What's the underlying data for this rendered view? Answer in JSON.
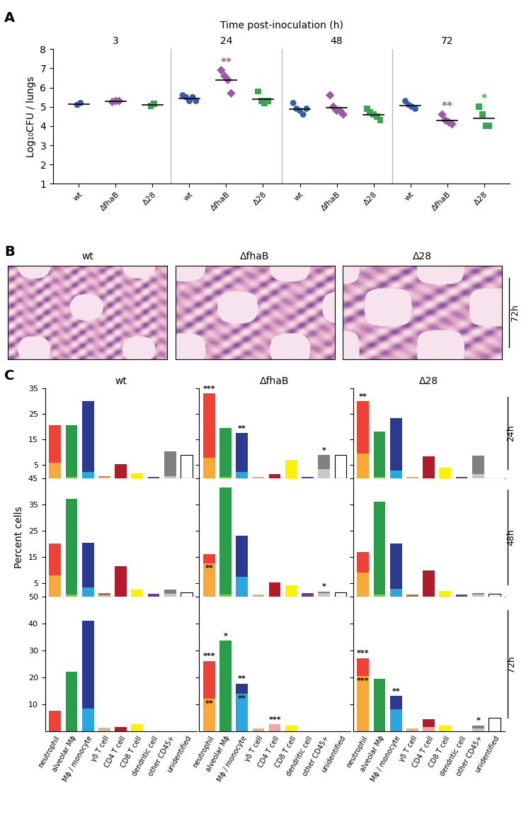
{
  "panel_labels": [
    "A",
    "B",
    "C"
  ],
  "histology": {
    "titles": [
      "wt",
      "ΔfhaB",
      "Δ28"
    ],
    "time": "72h"
  },
  "chart_data": [
    {
      "type": "scatter",
      "title": "Time post-inoculation (h)",
      "ylabel": "Log₁₀CFU / lungs",
      "groups": [
        "3",
        "24",
        "48",
        "72"
      ],
      "categories": [
        "wt",
        "ΔfhaB",
        "Δ28"
      ],
      "series": [
        {
          "name": "wt",
          "color": "#3b5ba9",
          "marker": "circle",
          "values": [
            [
              5.1,
              5.2
            ],
            [
              5.6,
              5.5,
              5.3,
              5.5,
              5.3
            ],
            [
              5.2,
              4.9,
              4.8,
              4.6,
              4.9
            ],
            [
              5.3,
              5.1,
              5.0,
              4.9
            ]
          ]
        },
        {
          "name": "ΔfhaB",
          "color": "#9b59a6",
          "marker": "diamond",
          "values": [
            [
              5.25,
              5.3,
              5.3
            ],
            [
              6.9,
              6.6,
              6.4,
              5.7
            ],
            [
              5.6,
              5.0,
              4.8,
              4.8,
              4.6
            ],
            [
              4.6,
              4.3,
              4.2,
              4.1
            ]
          ]
        },
        {
          "name": "Δ28",
          "color": "#3aa552",
          "marker": "square",
          "values": [
            [
              5.05,
              5.15
            ],
            [
              5.8,
              5.3,
              5.2,
              5.3
            ],
            [
              4.9,
              4.7,
              4.6,
              4.5,
              4.3
            ],
            [
              5.0,
              4.6,
              4.0,
              4.0
            ]
          ]
        }
      ],
      "ylim": [
        1,
        8
      ],
      "yticks": [
        1,
        2,
        3,
        4,
        5,
        6,
        7,
        8
      ],
      "annotations": [
        {
          "group": "24",
          "category": "ΔfhaB",
          "text": "**"
        },
        {
          "group": "72",
          "category": "ΔfhaB",
          "text": "**"
        },
        {
          "group": "72",
          "category": "Δ28",
          "text": "*"
        }
      ]
    },
    {
      "type": "bar",
      "stacked": true,
      "title": "wt",
      "tick_labels": "y",
      "categories": [
        "neutrophil",
        "alveolar Mϕ",
        "Mϕ / monocyte",
        "γδ T cell",
        "CD4 T cell",
        "CD8 T cell",
        "dendritic cell",
        "other CD45+",
        "unidentified"
      ],
      "series": [
        {
          "colors": [
            "#f9a93a",
            "#8dc63f",
            "#2aa7df",
            "#d9b78a",
            "#f4a6a6",
            "#f7e24a",
            "#9c7bb5",
            "#c8c8c8",
            "#ffffff"
          ],
          "values": [
            5.8,
            0.5,
            2.3,
            0.3,
            0,
            0,
            0,
            0.8,
            0
          ]
        },
        {
          "colors": [
            "#ef4136",
            "#2a9d4a",
            "#2b3990",
            "#a6763c",
            "#b31b2b",
            "#fff200",
            "#6a3d9a",
            "#808080",
            "#ffffff"
          ],
          "values": [
            14.7,
            20,
            27.7,
            0.5,
            5.5,
            1.7,
            0.5,
            9.5,
            9
          ]
        }
      ],
      "ylim": [
        0,
        35
      ],
      "yticks": [
        5,
        15,
        25,
        35
      ],
      "annotations": []
    },
    {
      "type": "bar",
      "stacked": true,
      "title": "ΔfhaB",
      "tick_labels": false,
      "categories": [
        "neutrophil",
        "alveolar Mϕ",
        "Mϕ / monocyte",
        "γδ T cell",
        "CD4 T cell",
        "CD8 T cell",
        "dendritic cell",
        "other CD45+",
        "unidentified"
      ],
      "series": [
        {
          "colors": [
            "#f9a93a",
            "#8dc63f",
            "#2aa7df",
            "#d9b78a",
            "#f4a6a6",
            "#f7e24a",
            "#9c7bb5",
            "#c8c8c8",
            "#ffffff"
          ],
          "values": [
            8,
            0.5,
            2.3,
            0.3,
            0,
            0,
            0,
            3.5,
            0
          ]
        },
        {
          "colors": [
            "#ef4136",
            "#2a9d4a",
            "#2b3990",
            "#a6763c",
            "#b31b2b",
            "#fff200",
            "#6a3d9a",
            "#808080",
            "#ffffff"
          ],
          "values": [
            25,
            19,
            15.2,
            0,
            1.5,
            7,
            0.5,
            5.5,
            9
          ]
        }
      ],
      "ylim": [
        0,
        35
      ],
      "yticks": [
        5,
        15,
        25,
        35
      ],
      "annotations": [
        {
          "category": "neutrophil",
          "series": 1,
          "text": "***"
        },
        {
          "category": "Mϕ / monocyte",
          "series": 1,
          "text": "**"
        },
        {
          "category": "other CD45+",
          "series": 0,
          "text": "*"
        }
      ]
    },
    {
      "type": "bar",
      "stacked": true,
      "title": "Δ28",
      "time": "24h",
      "tick_labels": false,
      "categories": [
        "neutrophil",
        "alveolar Mϕ",
        "Mϕ / monocyte",
        "γδ T cell",
        "CD4 T cell",
        "CD8 T cell",
        "dendritic cell",
        "other CD45+",
        "unidentified"
      ],
      "series": [
        {
          "colors": [
            "#f9a93a",
            "#8dc63f",
            "#2aa7df",
            "#d9b78a",
            "#f4a6a6",
            "#f7e24a",
            "#9c7bb5",
            "#c8c8c8",
            "#ffffff"
          ],
          "values": [
            9.5,
            0.5,
            3,
            0.4,
            0,
            0,
            0,
            1.5,
            0
          ]
        },
        {
          "colors": [
            "#ef4136",
            "#2a9d4a",
            "#2b3990",
            "#a6763c",
            "#b31b2b",
            "#fff200",
            "#6a3d9a",
            "#808080",
            "#ffffff"
          ],
          "values": [
            20.5,
            17.5,
            20.3,
            0,
            8.3,
            4,
            0.5,
            7.3,
            0
          ]
        }
      ],
      "ylim": [
        0,
        35
      ],
      "yticks": [
        5,
        15,
        25,
        35
      ],
      "annotations": [
        {
          "category": "neutrophil",
          "series": 1,
          "text": "**"
        }
      ]
    },
    {
      "type": "bar",
      "stacked": true,
      "tick_labels": "y",
      "ylabel": "Percent cells",
      "categories": [
        "neutrophil",
        "alveolar Mϕ",
        "Mϕ / monocyte",
        "γδ T cell",
        "CD4 T cell",
        "CD8 T cell",
        "dendritic cell",
        "other CD45+",
        "unidentified"
      ],
      "series": [
        {
          "colors": [
            "#f9a93a",
            "#8dc63f",
            "#2aa7df",
            "#d9b78a",
            "#f4a6a6",
            "#f7e24a",
            "#9c7bb5",
            "#c8c8c8",
            "#ffffff"
          ],
          "values": [
            8,
            0.7,
            3.3,
            0.5,
            0,
            0,
            0,
            1,
            0
          ]
        },
        {
          "colors": [
            "#ef4136",
            "#2a9d4a",
            "#2b3990",
            "#a6763c",
            "#b31b2b",
            "#fff200",
            "#6a3d9a",
            "#808080",
            "#ffffff"
          ],
          "values": [
            12,
            36.3,
            17.2,
            0.7,
            11.5,
            2.5,
            1,
            1.5,
            1.5
          ]
        }
      ],
      "ylim": [
        0,
        45
      ],
      "yticks": [
        5,
        15,
        25,
        35,
        45
      ],
      "annotations": []
    },
    {
      "type": "bar",
      "stacked": true,
      "tick_labels": false,
      "categories": [
        "neutrophil",
        "alveolar Mϕ",
        "Mϕ / monocyte",
        "γδ T cell",
        "CD4 T cell",
        "CD8 T cell",
        "dendritic cell",
        "other CD45+",
        "unidentified"
      ],
      "series": [
        {
          "colors": [
            "#f9a93a",
            "#8dc63f",
            "#2aa7df",
            "#d9b78a",
            "#f4a6a6",
            "#f7e24a",
            "#9c7bb5",
            "#c8c8c8",
            "#ffffff"
          ],
          "values": [
            12.5,
            0.8,
            7.5,
            0.7,
            0,
            0,
            0,
            1.2,
            0
          ]
        },
        {
          "colors": [
            "#ef4136",
            "#2a9d4a",
            "#2b3990",
            "#a6763c",
            "#b31b2b",
            "#fff200",
            "#6a3d9a",
            "#808080",
            "#ffffff"
          ],
          "values": [
            3.5,
            40.7,
            15.5,
            0,
            5.3,
            4.2,
            1.2,
            0.6,
            1.5
          ]
        }
      ],
      "ylim": [
        0,
        45
      ],
      "yticks": [
        5,
        15,
        25,
        35,
        45
      ],
      "annotations": [
        {
          "category": "neutrophil",
          "series": 0,
          "text": "**"
        },
        {
          "category": "other CD45+",
          "series": 0,
          "text": "*"
        }
      ]
    },
    {
      "type": "bar",
      "stacked": true,
      "time": "48h",
      "tick_labels": false,
      "categories": [
        "neutrophil",
        "alveolar Mϕ",
        "Mϕ / monocyte",
        "γδ T cell",
        "CD4 T cell",
        "CD8 T cell",
        "dendritic cell",
        "other CD45+",
        "unidentified"
      ],
      "series": [
        {
          "colors": [
            "#f9a93a",
            "#8dc63f",
            "#2aa7df",
            "#d9b78a",
            "#f4a6a6",
            "#f7e24a",
            "#9c7bb5",
            "#c8c8c8",
            "#ffffff"
          ],
          "values": [
            9,
            0.6,
            3,
            0,
            0,
            0,
            0,
            0.8,
            0
          ]
        },
        {
          "colors": [
            "#ef4136",
            "#2a9d4a",
            "#2b3990",
            "#a6763c",
            "#b31b2b",
            "#fff200",
            "#6a3d9a",
            "#808080",
            "#ffffff"
          ],
          "values": [
            8,
            35.4,
            17,
            0.7,
            10,
            2,
            0.8,
            0.5,
            1
          ]
        }
      ],
      "ylim": [
        0,
        45
      ],
      "yticks": [
        5,
        15,
        25,
        35,
        45
      ],
      "annotations": []
    },
    {
      "type": "bar",
      "stacked": true,
      "tick_labels": true,
      "categories": [
        "neutrophil",
        "alveolar Mϕ",
        "Mϕ / monocyte",
        "γδ T cell",
        "CD4 T cell",
        "CD8 T cell",
        "dendritic cell",
        "other CD45+",
        "unidentified"
      ],
      "series": [
        {
          "colors": [
            "#f9a93a",
            "#8dc63f",
            "#2aa7df",
            "#d9b78a",
            "#f4a6a6",
            "#f7e24a",
            "#9c7bb5",
            "#c8c8c8",
            "#ffffff"
          ],
          "values": [
            0,
            0,
            8.5,
            1.2,
            0,
            0,
            0,
            0,
            0
          ]
        },
        {
          "colors": [
            "#ef4136",
            "#2a9d4a",
            "#2b3990",
            "#a6763c",
            "#b31b2b",
            "#fff200",
            "#6a3d9a",
            "#808080",
            "#ffffff"
          ],
          "values": [
            7.5,
            22,
            32.5,
            0,
            1.5,
            2.5,
            0,
            0,
            0
          ]
        }
      ],
      "ylim": [
        0,
        50
      ],
      "yticks": [
        10,
        20,
        30,
        40,
        50
      ],
      "annotations": []
    },
    {
      "type": "bar",
      "stacked": true,
      "tick_labels": "x",
      "categories": [
        "neutrophil",
        "alveolar Mϕ",
        "Mϕ / monocyte",
        "γδ T cell",
        "CD4 T cell",
        "CD8 T cell",
        "dendritic cell",
        "other CD45+",
        "unidentified"
      ],
      "series": [
        {
          "colors": [
            "#f9a93a",
            "#8dc63f",
            "#2aa7df",
            "#d9b78a",
            "#f4a6a6",
            "#f7e24a",
            "#9c7bb5",
            "#c8c8c8",
            "#ffffff"
          ],
          "values": [
            12,
            0,
            14,
            1,
            2.5,
            0,
            0,
            0,
            0
          ]
        },
        {
          "colors": [
            "#ef4136",
            "#2a9d4a",
            "#2b3990",
            "#a6763c",
            "#b31b2b",
            "#fff200",
            "#6a3d9a",
            "#808080",
            "#ffffff"
          ],
          "values": [
            14,
            33.5,
            3.5,
            0,
            0,
            2,
            0,
            0,
            0
          ]
        }
      ],
      "ylim": [
        0,
        50
      ],
      "yticks": [
        10,
        20,
        30,
        40,
        50
      ],
      "annotations": [
        {
          "category": "neutrophil",
          "series": 1,
          "text": "***"
        },
        {
          "category": "neutrophil",
          "series": 0,
          "text": "**"
        },
        {
          "category": "alveolar Mϕ",
          "series": 1,
          "text": "*"
        },
        {
          "category": "Mϕ / monocyte",
          "series": 1,
          "text": "**"
        },
        {
          "category": "Mϕ / monocyte",
          "series": 0,
          "text": "**"
        },
        {
          "category": "CD4 T cell",
          "series": 0,
          "text": "***"
        }
      ]
    },
    {
      "type": "bar",
      "stacked": true,
      "time": "72h",
      "tick_labels": "x",
      "categories": [
        "neutrophil",
        "alveolar Mϕ",
        "Mϕ / monocyte",
        "γδ T cell",
        "CD4 T cell",
        "CD8 T cell",
        "dendritic cell",
        "other CD45+",
        "unidentified"
      ],
      "series": [
        {
          "colors": [
            "#f9a93a",
            "#8dc63f",
            "#2aa7df",
            "#d9b78a",
            "#f4a6a6",
            "#f7e24a",
            "#9c7bb5",
            "#c8c8c8",
            "#ffffff"
          ],
          "values": [
            20.5,
            0,
            8,
            1,
            1.5,
            0,
            0,
            1,
            0
          ]
        },
        {
          "colors": [
            "#ef4136",
            "#2a9d4a",
            "#2b3990",
            "#a6763c",
            "#b31b2b",
            "#fff200",
            "#6a3d9a",
            "#808080",
            "#ffffff"
          ],
          "values": [
            6.5,
            19.5,
            5,
            0,
            3,
            2,
            0,
            1,
            5
          ]
        }
      ],
      "ylim": [
        0,
        50
      ],
      "yticks": [
        10,
        20,
        30,
        40,
        50
      ],
      "annotations": [
        {
          "category": "neutrophil",
          "series": 1,
          "text": "***"
        },
        {
          "category": "neutrophil",
          "series": 0,
          "text": "***"
        },
        {
          "category": "Mϕ / monocyte",
          "series": 1,
          "text": "**"
        },
        {
          "category": "other CD45+",
          "series": 1,
          "text": "*"
        }
      ]
    }
  ]
}
